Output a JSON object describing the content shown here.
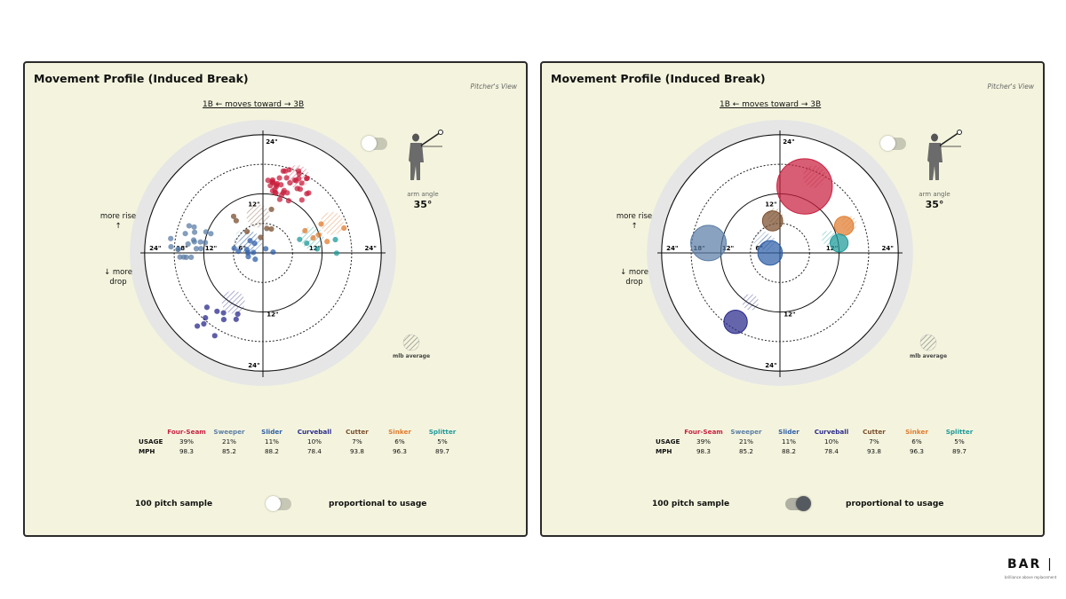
{
  "panels": [
    {
      "title": "Movement Profile (Induced Break)",
      "view": "Pitcher's View",
      "direction_label": "1B   ←  moves toward  →    3B",
      "arm_angle_label": "arm angle",
      "arm_angle_value": "35°",
      "more_rise": "more rise ↑",
      "more_drop": "↓ more drop",
      "mlb_average_label": "mlb average",
      "sample_label": "100 pitch sample",
      "proportional_label": "proportional to usage",
      "toggle_state": "100 pitch sample"
    },
    {
      "title": "Movement Profile (Induced Break)",
      "view": "Pitcher's View",
      "direction_label": "1B   ←  moves toward  →    3B",
      "arm_angle_label": "arm angle",
      "arm_angle_value": "35°",
      "more_rise": "more rise ↑",
      "more_drop": "↓ more drop",
      "mlb_average_label": "mlb average",
      "sample_label": "100 pitch sample",
      "proportional_label": "proportional to usage",
      "toggle_state": "proportional to usage"
    }
  ],
  "legend": {
    "row_labels": [
      "USAGE",
      "MPH"
    ],
    "pitches": [
      {
        "name": "Four-Seam",
        "usage": "39%",
        "mph": "98.3",
        "color": "#c8203f"
      },
      {
        "name": "Sweeper",
        "usage": "21%",
        "mph": "85.2",
        "color": "#5b7ea6"
      },
      {
        "name": "Slider",
        "usage": "11%",
        "mph": "88.2",
        "color": "#2f5fa8"
      },
      {
        "name": "Curveball",
        "usage": "10%",
        "mph": "78.4",
        "color": "#2a2a8c"
      },
      {
        "name": "Cutter",
        "usage": "7%",
        "mph": "93.8",
        "color": "#7a4e2d"
      },
      {
        "name": "Sinker",
        "usage": "6%",
        "mph": "96.3",
        "color": "#e07b2e"
      },
      {
        "name": "Splitter",
        "usage": "5%",
        "mph": "89.7",
        "color": "#1f9a9a"
      }
    ]
  },
  "chart_data": {
    "type": "scatter",
    "xlabel": "1B ← moves toward → 3B",
    "ring_labels": [
      "6\"",
      "12\"",
      "18\"",
      "24\""
    ],
    "xlim": [
      -24,
      24
    ],
    "ylim": [
      -24,
      24
    ],
    "series": [
      {
        "name": "Four-Seam",
        "color": "#c8203f",
        "usage": 39,
        "avg": [
          5,
          13.5
        ],
        "mlb_avg": [
          7,
          15.5
        ]
      },
      {
        "name": "Sweeper",
        "color": "#5b7ea6",
        "usage": 21,
        "avg": [
          -14.5,
          2
        ],
        "mlb_avg": [
          -3.5,
          2.5
        ]
      },
      {
        "name": "Slider",
        "color": "#2f5fa8",
        "usage": 11,
        "avg": [
          -2,
          0
        ],
        "mlb_avg": [
          -2.5,
          2
        ]
      },
      {
        "name": "Curveball",
        "color": "#2a2a8c",
        "usage": 10,
        "avg": [
          -9,
          -14
        ],
        "mlb_avg": [
          -6,
          -10
        ]
      },
      {
        "name": "Cutter",
        "color": "#7a4e2d",
        "usage": 7,
        "avg": [
          -1.5,
          6.5
        ],
        "mlb_avg": [
          -1,
          7.5
        ]
      },
      {
        "name": "Sinker",
        "color": "#e07b2e",
        "usage": 6,
        "avg": [
          13,
          5.5
        ],
        "mlb_avg": [
          14,
          6
        ]
      },
      {
        "name": "Splitter",
        "color": "#1f9a9a",
        "usage": 5,
        "avg": [
          12,
          2
        ],
        "mlb_avg": [
          10,
          3
        ]
      }
    ]
  },
  "brand": {
    "logo": "BAR",
    "tagline": "brilliance above replacement"
  }
}
